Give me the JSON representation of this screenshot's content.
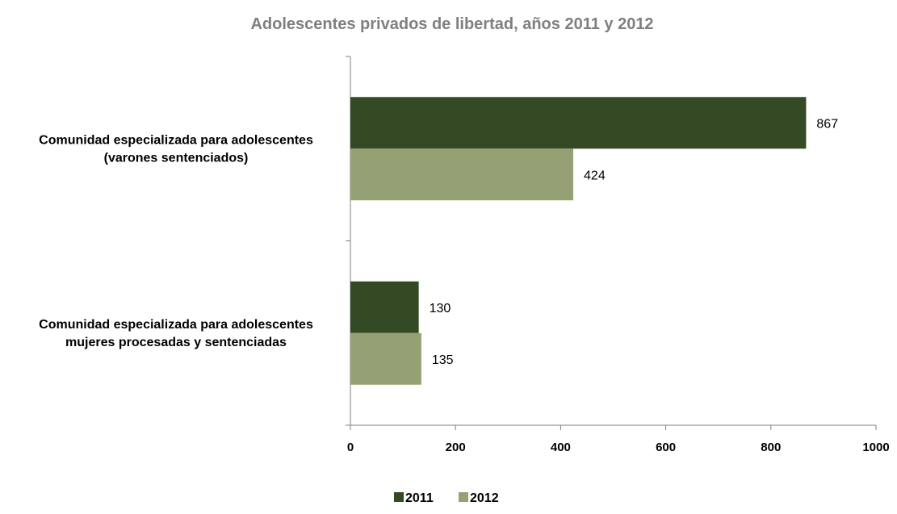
{
  "chart_data": {
    "type": "bar",
    "orientation": "horizontal",
    "title": "Adolescentes privados de libertad, años 2011 y 2012",
    "xlabel": "",
    "ylabel": "",
    "categories": [
      [
        "Comunidad especializada para adolescentes",
        "(varones sentenciados)"
      ],
      [
        "Comunidad especializada para adolescentes",
        "mujeres procesadas y sentenciadas"
      ]
    ],
    "series": [
      {
        "name": "2011",
        "values": [
          867,
          130
        ],
        "color": "#344a25"
      },
      {
        "name": "2012",
        "values": [
          424,
          135
        ],
        "color": "#95a174"
      }
    ],
    "xlim": [
      0,
      1000
    ],
    "xticks": [
      "0",
      "200",
      "400",
      "600",
      "800",
      "1000"
    ],
    "grid": false,
    "legend": "bottom"
  }
}
